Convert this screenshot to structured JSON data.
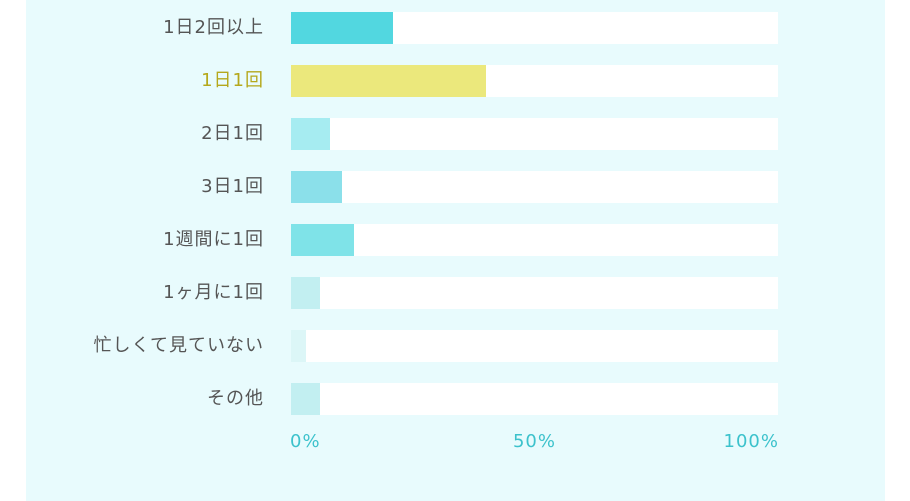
{
  "chart_data": {
    "type": "bar",
    "orientation": "horizontal",
    "categories": [
      "1日2回以上",
      "1日1回",
      "2日1回",
      "3日1回",
      "1週間に1回",
      "1ヶ月に1回",
      "忙しくて見ていない",
      "その他"
    ],
    "values": [
      21,
      40,
      8,
      10.5,
      13,
      6,
      3,
      6
    ],
    "colors": [
      "#52d7e0",
      "#ebe87c",
      "#a6ecf1",
      "#8be0ea",
      "#7fe3e8",
      "#c2eff1",
      "#dcf6f7",
      "#c2eff1"
    ],
    "highlight_label_color": "#b5a81c",
    "highlight_index": 1,
    "label_color": "#555555",
    "xlim": [
      0,
      100
    ],
    "xticks": [
      "0%",
      "50%",
      "100%"
    ],
    "tick_color": "#3cc2cc",
    "grid": false,
    "title": "",
    "xlabel": "",
    "ylabel": ""
  }
}
